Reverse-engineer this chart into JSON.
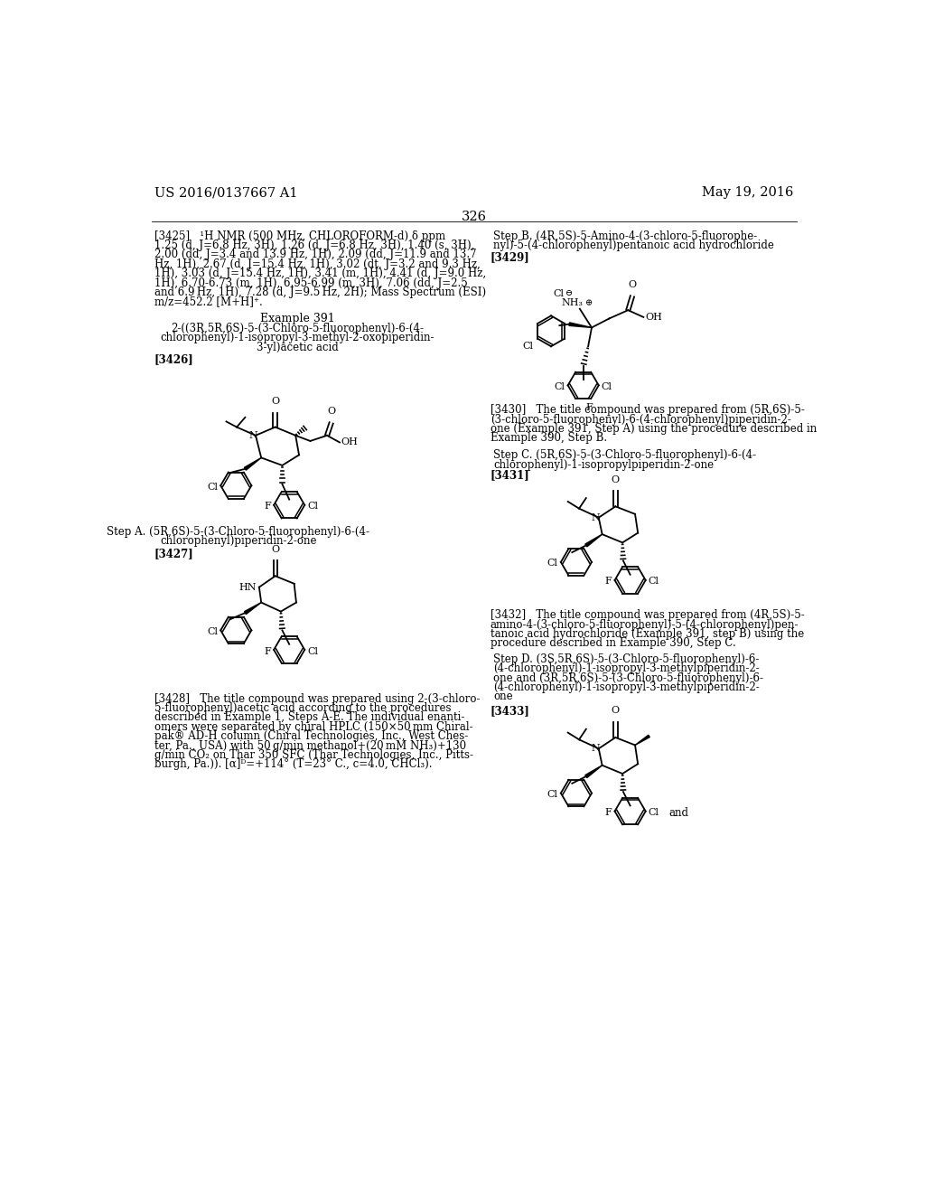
{
  "page_number": "326",
  "left_header": "US 2016/0137667 A1",
  "right_header": "May 19, 2016",
  "background_color": "#ffffff",
  "text_color": "#000000",
  "nmr_text_lines": [
    "[3425]   ¹H NMR (500 MHz, CHLOROFORM-d) δ ppm",
    "1.25 (d, J=6.8 Hz, 3H), 1.26 (d, J=6.8 Hz, 3H), 1.40 (s, 3H),",
    "2.00 (dd, J=3.4 and 13.9 Hz, 1H), 2.09 (dd, J=11.9 and 13.7",
    "Hz, 1H), 2.67 (d, J=15.4 Hz, 1H), 3.02 (dt, J=3.2 and 9.3 Hz,",
    "1H), 3.03 (d, J=15.4 Hz, 1H), 3.41 (m, 1H), 4.41 (d, J=9.0 Hz,",
    "1H), 6.70-6.73 (m, 1H), 6.95-6.99 (m, 3H), 7.06 (dd, J=2.5",
    "and 6.9 Hz, 1H), 7.28 (d, J=9.5 Hz, 2H); Mass Spectrum (ESI)",
    "m/z=452.2 [M+H]⁺."
  ],
  "example_391_title": "Example 391",
  "example_391_name_lines": [
    "2-((3R,5R,6S)-5-(3-Chloro-5-fluorophenyl)-6-(4-",
    "chlorophenyl)-1-isopropyl-3-methyl-2-oxopiperidin-",
    "3-yl)acetic acid"
  ],
  "ref_3426": "[3426]",
  "step_a_lines": [
    "Step A. (5R,6S)-5-(3-Chloro-5-fluorophenyl)-6-(4-",
    "chlorophenyl)piperidin-2-one"
  ],
  "ref_3427": "[3427]",
  "ref_3428_lines": [
    "[3428]   The title compound was prepared using 2-(3-chloro-",
    "5-fluorophenyl)acetic acid according to the procedures",
    "described in Example 1, Steps A-E. The individual enanti-",
    "omers were separated by chiral HPLC (150×50 mm Chiral-",
    "pak® AD-H column (Chiral Technologies, Inc., West Ches-",
    "ter, Pa., USA) with 50 g/min methanol+(20 mM NH₃)+130",
    "g/min CO₂ on Thar 350 SFC (Thar Technologies, Inc., Pitts-",
    "burgh, Pa.)). [α]ᴰ=+114° (T=23° C., c=4.0, CHCl₃)."
  ],
  "step_b_lines": [
    "Step B. (4R,5S)-5-Amino-4-(3-chloro-5-fluorophe-",
    "nyl)-5-(4-chlorophenyl)pentanoic acid hydrochloride"
  ],
  "ref_3429": "[3429]",
  "ref_3430_lines": [
    "[3430]   The title compound was prepared from (5R,6S)-5-",
    "(3-chloro-5-fluorophenyl)-6-(4-chlorophenyl)piperidin-2-",
    "one (Example 391, Step A) using the procedure described in",
    "Example 390, Step B."
  ],
  "step_c_lines": [
    "Step C. (5R,6S)-5-(3-Chloro-5-fluorophenyl)-6-(4-",
    "chlorophenyl)-1-isopropylpiperidin-2-one"
  ],
  "ref_3431": "[3431]",
  "ref_3432_lines": [
    "[3432]   The title compound was prepared from (4R,5S)-5-",
    "amino-4-(3-chloro-5-fluorophenyl)-5-(4-chlorophenyl)pen-",
    "tanoic acid hydrochloride (Example 391, step B) using the",
    "procedure described in Example 390, Step C."
  ],
  "step_d_lines": [
    "Step D. (3S,5R,6S)-5-(3-Chloro-5-fluorophenyl)-6-",
    "(4-chlorophenyl)-1-isopropyl-3-methylpiperidin-2-",
    "one and (3R,5R,6S)-5-(3-Chloro-5-fluorophenyl)-6-",
    "(4-chlorophenyl)-1-isopropyl-3-methylpiperidin-2-",
    "one"
  ],
  "ref_3433": "[3433]"
}
